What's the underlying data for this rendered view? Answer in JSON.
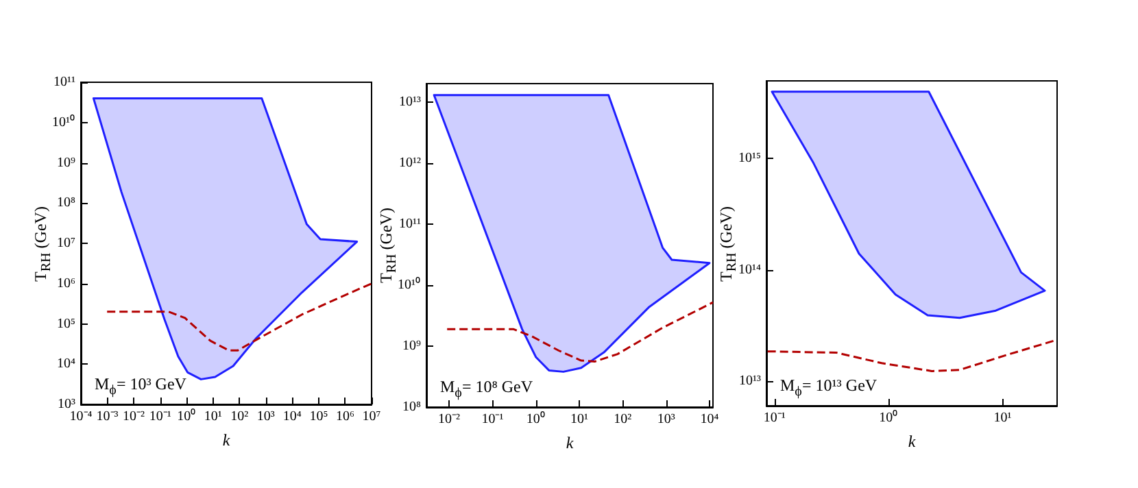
{
  "chart_data": [
    {
      "type": "line",
      "xlabel": "k",
      "ylabel": "T$_{RH}$ (GeV)",
      "log": "xy",
      "marker": "none",
      "xlim": [
        0.0001,
        10000000.0
      ],
      "ylim": [
        1000.0,
        100000000000.0
      ],
      "xticks": [
        {
          "value": 0.0001,
          "label": "10⁻⁴"
        },
        {
          "value": 0.001,
          "label": "10⁻³"
        },
        {
          "value": 0.01,
          "label": "10⁻²"
        },
        {
          "value": 0.1,
          "label": "10⁻¹"
        },
        {
          "value": 1,
          "label": "10⁰"
        },
        {
          "value": 10,
          "label": "10¹"
        },
        {
          "value": 100,
          "label": "10²"
        },
        {
          "value": 1000.0,
          "label": "10³"
        },
        {
          "value": 10000.0,
          "label": "10⁴"
        },
        {
          "value": 100000.0,
          "label": "10⁵"
        },
        {
          "value": 1000000.0,
          "label": "10⁶"
        },
        {
          "value": 10000000.0,
          "label": "10⁷"
        }
      ],
      "yticks": [
        {
          "value": 1000.0,
          "label": "10³"
        },
        {
          "value": 10000.0,
          "label": "10⁴"
        },
        {
          "value": 100000.0,
          "label": "10⁵"
        },
        {
          "value": 1000000.0,
          "label": "10⁶"
        },
        {
          "value": 10000000.0,
          "label": "10⁷"
        },
        {
          "value": 100000000.0,
          "label": "10⁸"
        },
        {
          "value": 1000000000.0,
          "label": "10⁹"
        },
        {
          "value": 10000000000.0,
          "label": "10¹⁰"
        },
        {
          "value": 100000000000.0,
          "label": "10¹¹"
        }
      ],
      "annotations": [
        "M$_{ϕ}$= 10³ GeV"
      ],
      "series": [
        {
          "type": "area",
          "color": "#1f1fff",
          "x": [
            0.0003,
            700.0,
            35000.0,
            115000.0,
            2800000.0,
            23000.0,
            430,
            58,
            12,
            3.5,
            1.1,
            0.48,
            0.145,
            0.0034
          ],
          "values": [
            40000000000.0,
            40000000000.0,
            30000000.0,
            12600000.0,
            11000000.0,
            600000.0,
            44000.0,
            9000.0,
            4800.0,
            4200.0,
            6200.0,
            15500.0,
            130000.0,
            190000000.0
          ]
        },
        {
          "type": "line",
          "color": "#b30000",
          "line_style": "dashed",
          "x": [
            0.00098,
            0.21,
            0.87,
            7.9,
            39,
            87,
            430,
            23000.0,
            1300000.0,
            10000000.0
          ],
          "values": [
            200000.0,
            200000.0,
            140000.0,
            38000.0,
            22000.0,
            22000.0,
            40000.0,
            170000.0,
            560000.0,
            1000000.0
          ]
        }
      ]
    },
    {
      "type": "line",
      "xlabel": "k",
      "ylabel": "T$_{RH}$ (GeV)",
      "log": "xy",
      "marker": "none",
      "xlim": [
        0.003,
        12000.0
      ],
      "ylim": [
        100000000.0,
        20000000000000.0
      ],
      "xticks": [
        {
          "value": 0.01,
          "label": "10⁻²"
        },
        {
          "value": 0.1,
          "label": "10⁻¹"
        },
        {
          "value": 1,
          "label": "10⁰"
        },
        {
          "value": 10,
          "label": "10¹"
        },
        {
          "value": 100,
          "label": "10²"
        },
        {
          "value": 1000.0,
          "label": "10³"
        },
        {
          "value": 10000.0,
          "label": "10⁴"
        }
      ],
      "yticks": [
        {
          "value": 100000000.0,
          "label": "10⁸"
        },
        {
          "value": 1000000000.0,
          "label": "10⁹"
        },
        {
          "value": 10000000000.0,
          "label": "10¹⁰"
        },
        {
          "value": 100000000000.0,
          "label": "10¹¹"
        },
        {
          "value": 1000000000000.0,
          "label": "10¹²"
        },
        {
          "value": 10000000000000.0,
          "label": "10¹³"
        }
      ],
      "annotations": [
        "M$_{ϕ}$= 10⁸ GeV"
      ],
      "series": [
        {
          "type": "area",
          "color": "#1f1fff",
          "x": [
            0.0045,
            47,
            830,
            1350,
            10000.0,
            410,
            37,
            11,
            4.3,
            2,
            1,
            0.48
          ],
          "values": [
            13000000000000.0,
            13000000000000.0,
            41000000000.0,
            26000000000.0,
            23000000000.0,
            4400000000.0,
            790000000.0,
            440000000.0,
            380000000.0,
            400000000.0,
            660000000.0,
            1900000000.0
          ]
        },
        {
          "type": "line",
          "color": "#b30000",
          "line_style": "dashed",
          "x": [
            0.009,
            0.3,
            0.8,
            3.3,
            11,
            23,
            76,
            830,
            12000.0
          ],
          "values": [
            1900000000.0,
            1900000000.0,
            1450000000.0,
            850000000.0,
            580000000.0,
            560000000.0,
            740000000.0,
            2000000000.0,
            5200000000.0
          ]
        }
      ]
    },
    {
      "type": "line",
      "xlabel": "k",
      "ylabel": "T$_{RH}$ (GeV)",
      "log": "xy",
      "marker": "none",
      "xlim": [
        0.085,
        30
      ],
      "ylim": [
        6000000000000.0,
        5000000000000000.0
      ],
      "xticks": [
        {
          "value": 0.1,
          "label": "10⁻¹"
        },
        {
          "value": 1,
          "label": "10⁰"
        },
        {
          "value": 10,
          "label": "10¹"
        }
      ],
      "yticks": [
        {
          "value": 10000000000000.0,
          "label": "10¹³"
        },
        {
          "value": 100000000000000.0,
          "label": "10¹⁴"
        },
        {
          "value": 1000000000000000.0,
          "label": "10¹⁵"
        }
      ],
      "annotations": [
        "M$_{ϕ}$= 10¹³ GeV"
      ],
      "series": [
        {
          "type": "area",
          "color": "#1f1fff",
          "x": [
            0.095,
            2.25,
            14.5,
            23.4,
            8.7,
            4.2,
            2.2,
            1.15,
            0.55,
            0.22
          ],
          "values": [
            4000000000000000.0,
            4000000000000000.0,
            95000000000000.0,
            65000000000000.0,
            43000000000000.0,
            37000000000000.0,
            39000000000000.0,
            60000000000000.0,
            140000000000000.0,
            910000000000000.0
          ]
        },
        {
          "type": "line",
          "color": "#b30000",
          "line_style": "dashed",
          "x": [
            0.087,
            0.35,
            0.87,
            2.4,
            4.2,
            10.5,
            30
          ],
          "values": [
            18500000000000.0,
            18000000000000.0,
            14500000000000.0,
            12300000000000.0,
            12600000000000.0,
            17000000000000.0,
            23500000000000.0
          ]
        }
      ]
    }
  ]
}
